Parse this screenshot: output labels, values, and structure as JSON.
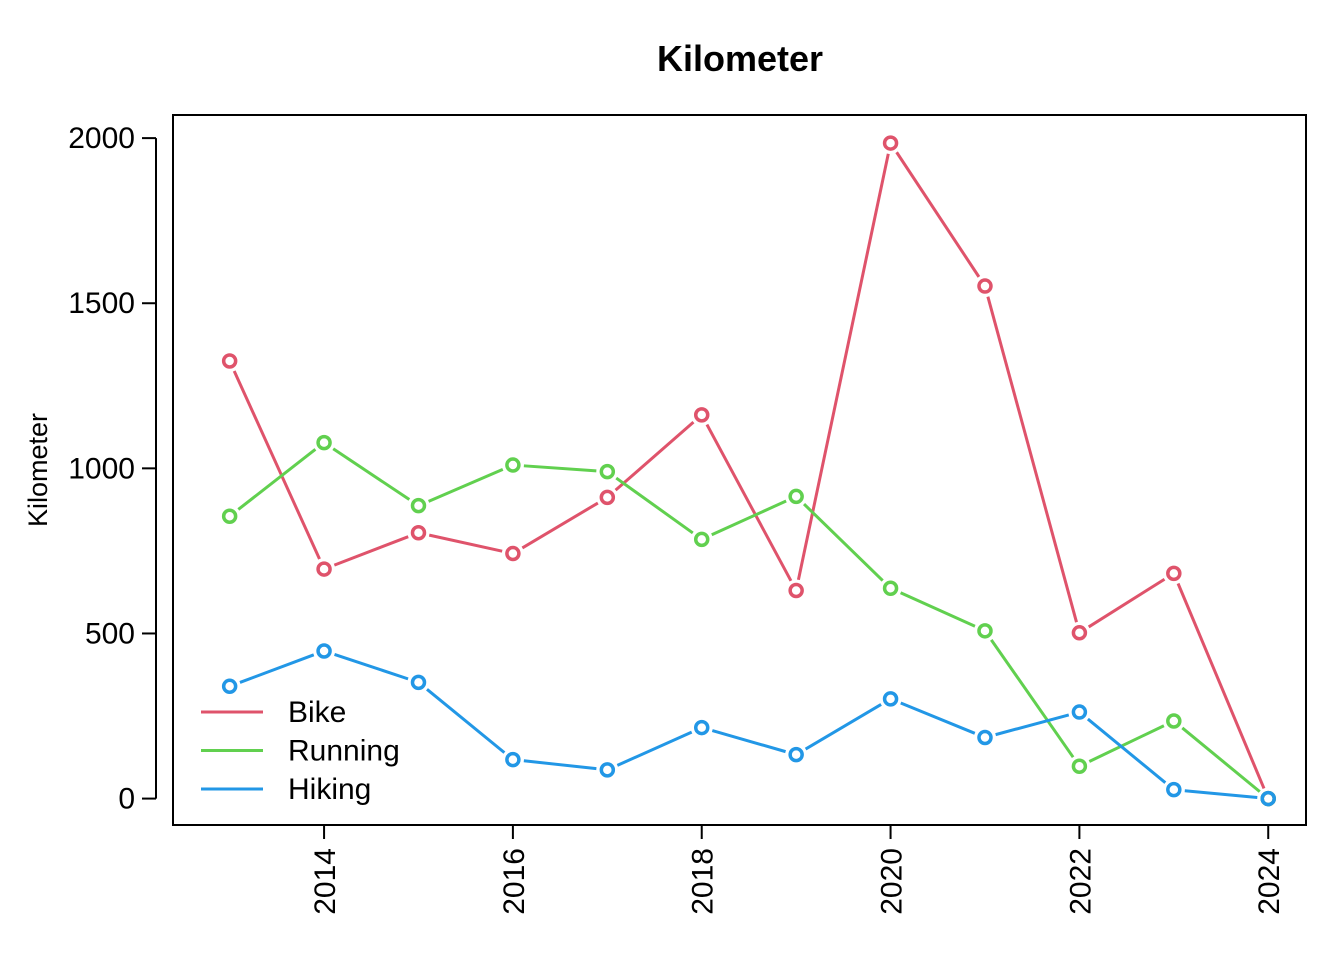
{
  "chart_data": {
    "type": "line",
    "title": "Kilometer",
    "xlabel": "",
    "ylabel": "Kilometer",
    "x": [
      2013,
      2014,
      2015,
      2016,
      2017,
      2018,
      2019,
      2020,
      2021,
      2022,
      2023,
      2024
    ],
    "xlim": [
      2012.4,
      2024.4
    ],
    "ylim": [
      -80,
      2070
    ],
    "xticks": [
      2014,
      2016,
      2018,
      2020,
      2022,
      2024
    ],
    "yticks": [
      0,
      500,
      1000,
      1500,
      2000
    ],
    "grid": false,
    "legend_position": "bottom-left",
    "series": [
      {
        "name": "Bike",
        "color": "#DF536B",
        "values": [
          1325,
          695,
          805,
          742,
          912,
          1162,
          630,
          1985,
          1552,
          502,
          682,
          0
        ]
      },
      {
        "name": "Running",
        "color": "#61D04F",
        "values": [
          855,
          1078,
          887,
          1010,
          990,
          785,
          915,
          637,
          508,
          98,
          235,
          0
        ]
      },
      {
        "name": "Hiking",
        "color": "#2297E6",
        "values": [
          340,
          447,
          352,
          118,
          87,
          215,
          133,
          302,
          185,
          262,
          27,
          0
        ]
      }
    ]
  }
}
